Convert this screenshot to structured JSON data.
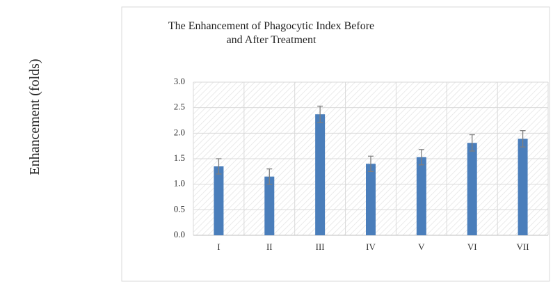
{
  "chart_data": {
    "type": "bar",
    "title": "The Enhancement of Phagocytic Index Before and After Treatment",
    "y_label": "Enhancement (folds)",
    "categories": [
      "I",
      "II",
      "III",
      "IV",
      "V",
      "VI",
      "VII"
    ],
    "values": [
      1.35,
      1.15,
      2.37,
      1.4,
      1.53,
      1.81,
      1.89
    ],
    "errors": [
      0.15,
      0.15,
      0.16,
      0.15,
      0.15,
      0.16,
      0.16
    ],
    "color": "#4a7ebb",
    "ylim": [
      0,
      3
    ],
    "yticks": [
      {
        "value": 0,
        "label": "0.0"
      },
      {
        "value": 0.5,
        "label": "0.5"
      },
      {
        "value": 1,
        "label": "1.0"
      },
      {
        "value": 1.5,
        "label": "1.5"
      },
      {
        "value": 2,
        "label": "2.0"
      },
      {
        "value": 2.5,
        "label": "2.5"
      },
      {
        "value": 3,
        "label": "3.0"
      }
    ],
    "grid": true
  }
}
